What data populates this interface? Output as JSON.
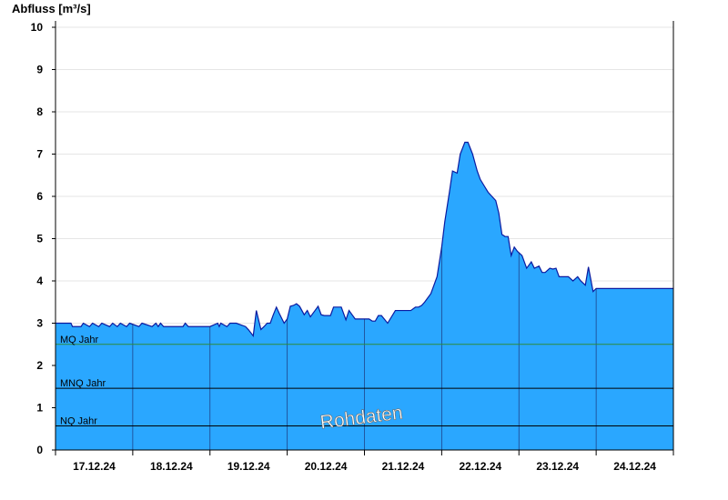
{
  "chart_data": {
    "type": "area",
    "ylabel": "Abfluss [m³/s]",
    "ylim": [
      0,
      10
    ],
    "yticks": [
      "0",
      "1",
      "2",
      "3",
      "4",
      "5",
      "6",
      "7",
      "8",
      "9",
      "10"
    ],
    "xlim": [
      0,
      8
    ],
    "categories": [
      "17.12.24",
      "18.12.24",
      "19.12.24",
      "20.12.24",
      "21.12.24",
      "22.12.24",
      "23.12.24",
      "24.12.24"
    ],
    "watermark": "Rohdaten",
    "grid": true,
    "colors": {
      "fill": "#2aa7ff",
      "line": "#0a1aa0",
      "mq_line": "#2e8b3a",
      "ref_line": "#000000",
      "day_line": "#1a1a5a"
    },
    "reference_lines": [
      {
        "label": "MQ Jahr",
        "value": 2.5
      },
      {
        "label": "MNQ Jahr",
        "value": 1.46
      },
      {
        "label": "NQ Jahr",
        "value": 0.57
      }
    ],
    "series": [
      {
        "x": [
          0.0,
          0.2,
          0.22,
          0.33,
          0.36,
          0.44,
          0.48,
          0.56,
          0.6,
          0.7,
          0.74,
          0.8,
          0.84,
          0.92,
          0.96,
          1.08,
          1.12,
          1.25,
          1.3,
          1.33,
          1.36,
          1.4,
          1.5,
          1.65,
          1.68,
          1.72,
          1.76,
          2.0,
          2.1,
          2.12,
          2.14,
          2.22,
          2.26,
          2.3,
          2.34,
          2.46,
          2.5,
          2.56,
          2.6,
          2.66,
          2.7,
          2.74,
          2.78,
          2.82,
          2.86,
          2.9,
          2.96,
          3.0,
          3.04,
          3.08,
          3.12,
          3.16,
          3.22,
          3.26,
          3.3,
          3.36,
          3.4,
          3.44,
          3.48,
          3.52,
          3.56,
          3.6,
          3.64,
          3.7,
          3.76,
          3.8,
          3.84,
          3.88,
          3.96,
          4.0,
          4.02,
          4.06,
          4.1,
          4.14,
          4.18,
          4.22,
          4.3,
          4.4,
          4.5,
          4.56,
          4.6,
          4.66,
          4.7,
          4.74,
          4.78,
          4.86,
          4.94,
          5.0,
          5.04,
          5.1,
          5.14,
          5.2,
          5.24,
          5.3,
          5.34,
          5.4,
          5.46,
          5.5,
          5.55,
          5.6,
          5.65,
          5.7,
          5.74,
          5.78,
          5.82,
          5.86,
          5.9,
          5.94,
          5.98,
          6.04,
          6.1,
          6.16,
          6.2,
          6.26,
          6.3,
          6.34,
          6.4,
          6.44,
          6.48,
          6.52,
          6.56,
          6.6,
          6.64,
          6.7,
          6.76,
          6.8,
          6.86,
          6.9,
          6.96,
          7.0,
          7.04,
          7.1,
          7.2,
          7.3,
          7.4,
          7.46,
          7.5,
          7.56,
          7.6,
          7.64,
          7.7,
          7.76,
          7.84,
          7.92,
          8.0
        ],
        "values": [
          3.0,
          3.0,
          2.92,
          2.92,
          3.0,
          2.92,
          3.0,
          2.92,
          3.0,
          2.92,
          3.0,
          2.92,
          3.0,
          2.92,
          3.0,
          2.92,
          3.0,
          2.92,
          3.0,
          2.92,
          3.0,
          2.92,
          2.92,
          2.92,
          3.0,
          2.92,
          2.92,
          2.92,
          3.0,
          2.92,
          3.0,
          2.92,
          3.0,
          3.0,
          3.0,
          2.92,
          2.84,
          2.7,
          3.3,
          2.85,
          2.92,
          3.0,
          3.0,
          3.2,
          3.38,
          3.22,
          3.0,
          3.1,
          3.4,
          3.42,
          3.46,
          3.4,
          3.2,
          3.3,
          3.15,
          3.3,
          3.4,
          3.2,
          3.18,
          3.18,
          3.18,
          3.38,
          3.38,
          3.38,
          3.08,
          3.3,
          3.2,
          3.1,
          3.1,
          3.1,
          3.1,
          3.1,
          3.05,
          3.05,
          3.18,
          3.18,
          3.0,
          3.3,
          3.3,
          3.3,
          3.3,
          3.38,
          3.38,
          3.42,
          3.5,
          3.7,
          4.1,
          4.8,
          5.4,
          6.1,
          6.6,
          6.55,
          7.0,
          7.28,
          7.28,
          7.0,
          6.6,
          6.4,
          6.25,
          6.1,
          6.0,
          5.9,
          5.6,
          5.1,
          5.05,
          5.05,
          4.6,
          4.8,
          4.7,
          4.6,
          4.3,
          4.45,
          4.3,
          4.35,
          4.2,
          4.2,
          4.3,
          4.28,
          4.3,
          4.1,
          4.1,
          4.1,
          4.1,
          4.0,
          4.1,
          4.0,
          3.9,
          4.33,
          3.75,
          3.82,
          3.82,
          3.82,
          3.82,
          3.82,
          3.82,
          3.82,
          3.82,
          3.82,
          3.82,
          3.82,
          3.82,
          3.82,
          3.82,
          3.82,
          3.82
        ]
      }
    ]
  }
}
